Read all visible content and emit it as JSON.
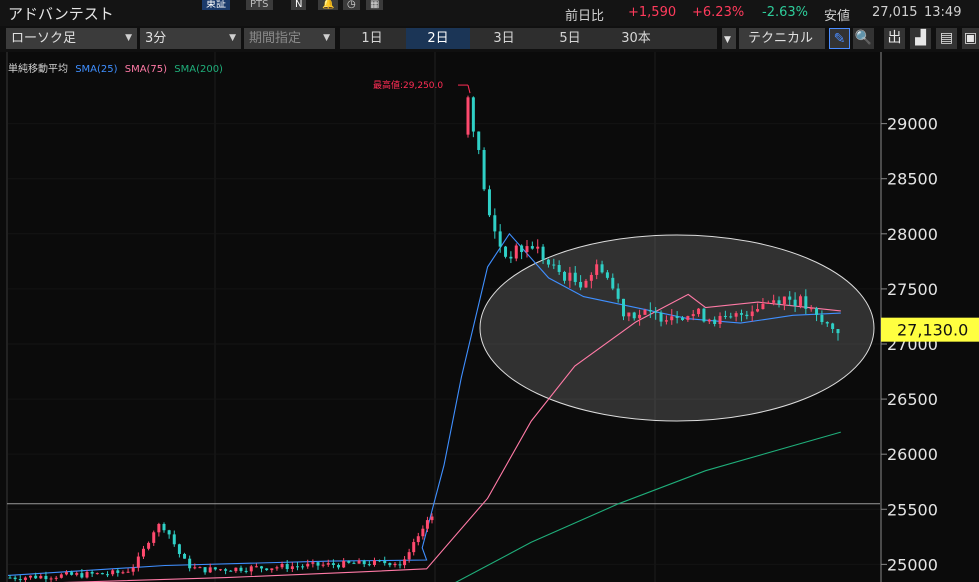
{
  "header": {
    "title": "アドバンテスト",
    "market_tabs": [
      "東証",
      "PTS"
    ],
    "quote": {
      "change_label": "前日比",
      "change": "+1,590",
      "change_pct": "+6.23%",
      "low_pct": "-2.63%",
      "low_label": "安値",
      "low_value": "27,015",
      "time": "13:49"
    }
  },
  "toolbar": {
    "chart_type": "ローソク足",
    "interval": "3分",
    "period": "期間指定",
    "ranges": [
      "1日",
      "2日",
      "3日",
      "5日",
      "30本"
    ],
    "active_range": "2日",
    "technical": "テクニカル",
    "icons": [
      "pencil-icon",
      "zoom-icon",
      "output-icon",
      "area-chart-icon",
      "document-icon",
      "window-icon"
    ],
    "icon_glyphs": [
      "✎",
      "🔍",
      "出",
      "▟",
      "▤",
      "▣"
    ]
  },
  "legend": {
    "title": "単純移動平均",
    "sma25": "SMA(25)",
    "sma75": "SMA(75)",
    "sma200": "SMA(200)"
  },
  "colors": {
    "up": "#ff3b5c",
    "down": "#2ecc9a",
    "candle_up": "#ff4a6e",
    "candle_down": "#2fd0c6",
    "sma25": "#3f8fff",
    "sma75": "#ff7aa6",
    "sma200": "#1fae7a",
    "price_tag_bg": "#ffff40",
    "active_tab": "#1b3556"
  },
  "chart_data": {
    "type": "candlestick",
    "y_ticks": [
      "29000",
      "28500",
      "28000",
      "27500",
      "27000",
      "26500",
      "26000",
      "25500",
      "25000"
    ],
    "y_range": [
      24840,
      29650
    ],
    "current_price": "27,130.0",
    "high_annotation": "最高値:29,250.0",
    "reference_line": 25550,
    "sessions": [
      {
        "bars": 76,
        "start": 24880,
        "end": 25020,
        "mid_peak": {
          "at": 0.39,
          "value": 25300
        }
      },
      {
        "bars": 8,
        "start": 25000,
        "end": 25450
      },
      {
        "bars": 70,
        "start": 29250,
        "end": 27130
      }
    ],
    "sma25": [
      [
        0.0,
        24900
      ],
      [
        0.18,
        24990
      ],
      [
        0.37,
        25030
      ],
      [
        0.48,
        25040
      ],
      [
        0.475,
        25150
      ],
      [
        0.5,
        25900
      ],
      [
        0.52,
        26700
      ],
      [
        0.55,
        27700
      ],
      [
        0.575,
        28000
      ],
      [
        0.62,
        27600
      ],
      [
        0.66,
        27430
      ],
      [
        0.72,
        27330
      ],
      [
        0.78,
        27230
      ],
      [
        0.84,
        27190
      ],
      [
        0.9,
        27260
      ],
      [
        0.955,
        27280
      ]
    ],
    "sma75": [
      [
        0.0,
        24820
      ],
      [
        0.25,
        24880
      ],
      [
        0.4,
        24930
      ],
      [
        0.48,
        24960
      ],
      [
        0.55,
        25600
      ],
      [
        0.6,
        26300
      ],
      [
        0.65,
        26800
      ],
      [
        0.72,
        27200
      ],
      [
        0.78,
        27450
      ],
      [
        0.8,
        27330
      ],
      [
        0.86,
        27380
      ],
      [
        0.955,
        27300
      ]
    ],
    "sma200": [
      [
        0.5,
        24780
      ],
      [
        0.6,
        25200
      ],
      [
        0.7,
        25550
      ],
      [
        0.8,
        25850
      ],
      [
        0.955,
        26200
      ]
    ]
  }
}
